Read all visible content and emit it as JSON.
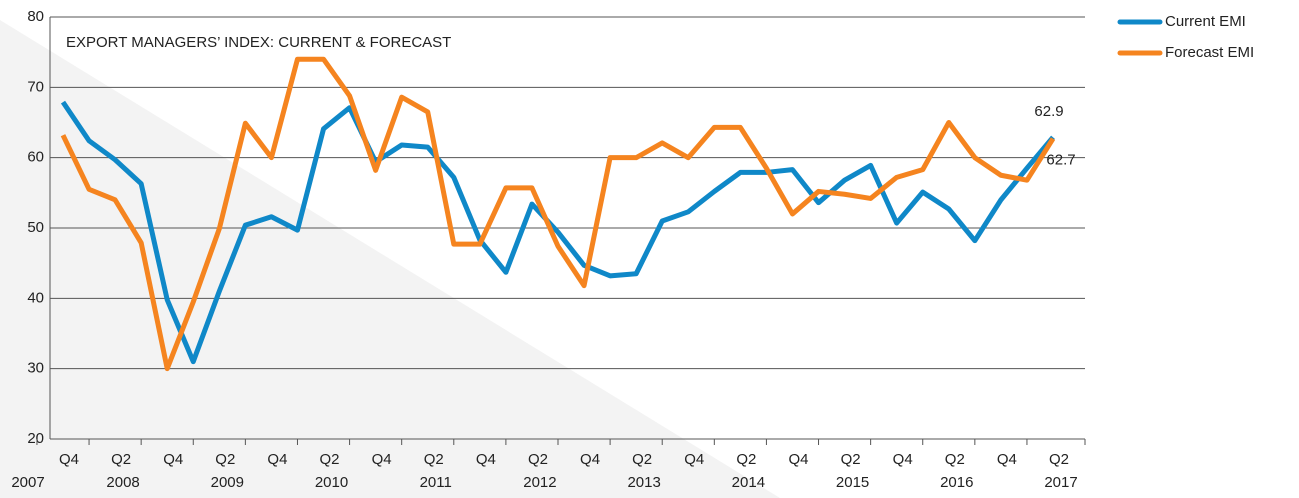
{
  "chart_data": {
    "type": "line",
    "title": "EXPORT MANAGERS’ INDEX: CURRENT & FORECAST",
    "categories": [
      "Q4",
      null,
      "Q2",
      null,
      "Q4",
      null,
      "Q2",
      null,
      "Q4",
      null,
      "Q2",
      null,
      "Q4",
      null,
      "Q2",
      null,
      "Q4",
      null,
      "Q2",
      null,
      "Q4",
      null,
      "Q2",
      null,
      "Q4",
      null,
      "Q2",
      null,
      "Q4",
      null,
      "Q2",
      null,
      "Q4",
      null,
      "Q2",
      null,
      "Q4",
      null,
      "Q2"
    ],
    "category_years": [
      "2007",
      null,
      "2008",
      null,
      null,
      null,
      "2009",
      null,
      null,
      null,
      "2010",
      null,
      null,
      null,
      "2011",
      null,
      null,
      null,
      "2012",
      null,
      null,
      null,
      "2013",
      null,
      null,
      null,
      "2014",
      null,
      null,
      null,
      "2015",
      null,
      null,
      null,
      "2016",
      null,
      null,
      null,
      "2017"
    ],
    "series": [
      {
        "name": "Current EMI",
        "color": "#0f88c8",
        "values": [
          67.9,
          62.4,
          59.7,
          56.3,
          39.8,
          31,
          41,
          50.4,
          51.6,
          49.7,
          64.1,
          67.1,
          59.4,
          61.8,
          61.5,
          57.2,
          48.3,
          43.7,
          53.4,
          49.4,
          44.7,
          43.2,
          43.5,
          51,
          52.3,
          55.2,
          57.9,
          57.9,
          58.3,
          53.6,
          56.8,
          58.9,
          50.7,
          55.1,
          52.7,
          48.2,
          54,
          58.5,
          62.9
        ],
        "value_labels": [
          null,
          null,
          null,
          null,
          null,
          null,
          null,
          null,
          null,
          null,
          null,
          null,
          null,
          null,
          null,
          null,
          null,
          null,
          null,
          null,
          null,
          null,
          null,
          null,
          null,
          null,
          null,
          null,
          null,
          null,
          null,
          null,
          null,
          null,
          null,
          null,
          null,
          null,
          "62.9"
        ]
      },
      {
        "name": "Forecast EMI",
        "color": "#f5841f",
        "values": [
          63.2,
          55.5,
          54,
          47.9,
          30,
          39.5,
          49.9,
          64.9,
          60,
          74,
          74,
          68.8,
          58.2,
          68.6,
          66.5,
          47.7,
          47.7,
          55.7,
          55.7,
          47.4,
          41.8,
          60,
          60,
          62.1,
          60,
          64.3,
          64.3,
          58.5,
          52,
          55.2,
          54.8,
          54.2,
          57.2,
          58.3,
          65,
          60,
          57.5,
          56.8,
          62.7
        ],
        "value_labels": [
          null,
          null,
          null,
          null,
          null,
          null,
          null,
          null,
          null,
          null,
          null,
          null,
          null,
          null,
          null,
          null,
          null,
          null,
          null,
          null,
          null,
          null,
          null,
          null,
          null,
          null,
          null,
          null,
          null,
          null,
          null,
          null,
          null,
          null,
          null,
          null,
          null,
          null,
          "62.7"
        ]
      }
    ],
    "ylim": [
      20,
      80
    ],
    "yticks": [
      20,
      30,
      40,
      50,
      60,
      70,
      80
    ],
    "grid": true,
    "legend": "top-right"
  }
}
